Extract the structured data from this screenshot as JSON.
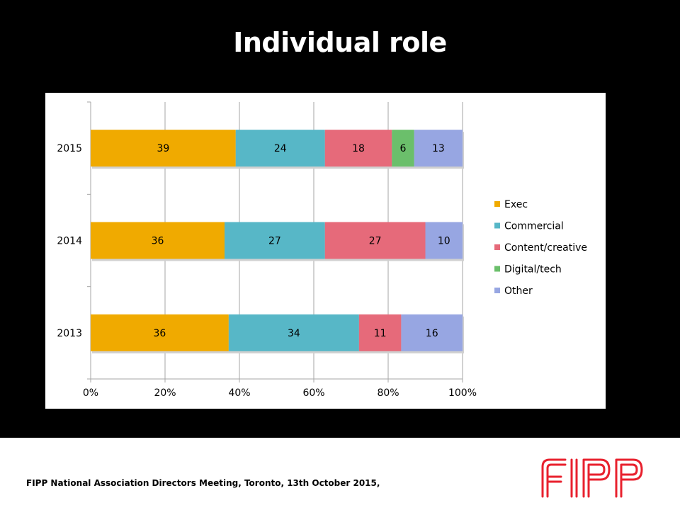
{
  "slide": {
    "title": "Individual role",
    "footer": "FIPP National Association Directors Meeting, Toronto, 13th October 2015,",
    "logo_text": "FIPP"
  },
  "colors": {
    "background": "#000000",
    "Exec": "#F0AA00",
    "Commercial": "#57B7C7",
    "Content/creative": "#E66A7A",
    "Digital/tech": "#6BBF6B",
    "Other": "#97A6E2",
    "logo": "#E8212E"
  },
  "chart_data": {
    "type": "bar",
    "orientation": "horizontal",
    "stacked": "percent",
    "title": "Individual role",
    "categories": [
      "2015",
      "2014",
      "2013"
    ],
    "series": [
      {
        "name": "Exec",
        "values": [
          39,
          36,
          36
        ]
      },
      {
        "name": "Commercial",
        "values": [
          24,
          27,
          34
        ]
      },
      {
        "name": "Content/creative",
        "values": [
          18,
          27,
          11
        ]
      },
      {
        "name": "Digital/tech",
        "values": [
          6,
          0,
          0
        ]
      },
      {
        "name": "Other",
        "values": [
          13,
          10,
          16
        ]
      }
    ],
    "x_ticks": [
      "0%",
      "20%",
      "40%",
      "60%",
      "80%",
      "100%"
    ],
    "xlim": [
      0,
      100
    ],
    "grid": "vertical",
    "legend": "right"
  }
}
